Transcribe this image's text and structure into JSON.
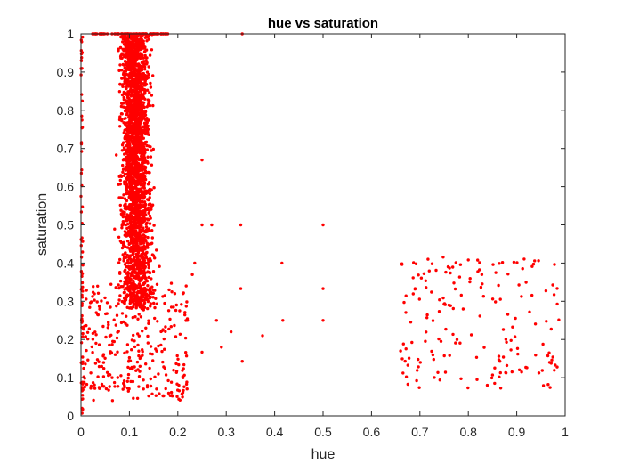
{
  "chart_data": {
    "type": "scatter",
    "title": "hue vs saturation",
    "xlabel": "hue",
    "ylabel": "saturation",
    "xlim": [
      0,
      1
    ],
    "ylim": [
      0,
      1
    ],
    "xticks": [
      "0",
      "0.1",
      "0.2",
      "0.3",
      "0.4",
      "0.5",
      "0.6",
      "0.7",
      "0.8",
      "0.9",
      "1"
    ],
    "yticks": [
      "0",
      "0.1",
      "0.2",
      "0.3",
      "0.4",
      "0.5",
      "0.6",
      "0.7",
      "0.8",
      "0.9",
      "1"
    ],
    "grid": false,
    "marker_color": "#ff0000",
    "clusters": [
      {
        "x_range": [
          0.02,
          0.2
        ],
        "y_range": [
          0.28,
          1.0
        ],
        "count": 2600
      },
      {
        "x_range": [
          0.0,
          0.22
        ],
        "y_range": [
          0.04,
          0.35
        ],
        "count": 320
      },
      {
        "x_range": [
          0.66,
          0.99
        ],
        "y_range": [
          0.07,
          0.42
        ],
        "count": 180
      }
    ],
    "points": [
      [
        0.25,
        0.67
      ],
      [
        0.333,
        1.0
      ],
      [
        0.28,
        0.25
      ],
      [
        0.31,
        0.22
      ],
      [
        0.33,
        0.5
      ],
      [
        0.375,
        0.21
      ],
      [
        0.415,
        0.4
      ],
      [
        0.417,
        0.25
      ],
      [
        0.5,
        0.5
      ],
      [
        0.5,
        0.333
      ],
      [
        0.5,
        0.25
      ],
      [
        0.25,
        0.5
      ],
      [
        0.27,
        0.5
      ],
      [
        0.33,
        0.333
      ],
      [
        0.22,
        0.25
      ],
      [
        0.235,
        0.4
      ],
      [
        0.23,
        0.37
      ],
      [
        0.29,
        0.18
      ],
      [
        0.333,
        0.143
      ],
      [
        0.25,
        0.167
      ]
    ]
  }
}
